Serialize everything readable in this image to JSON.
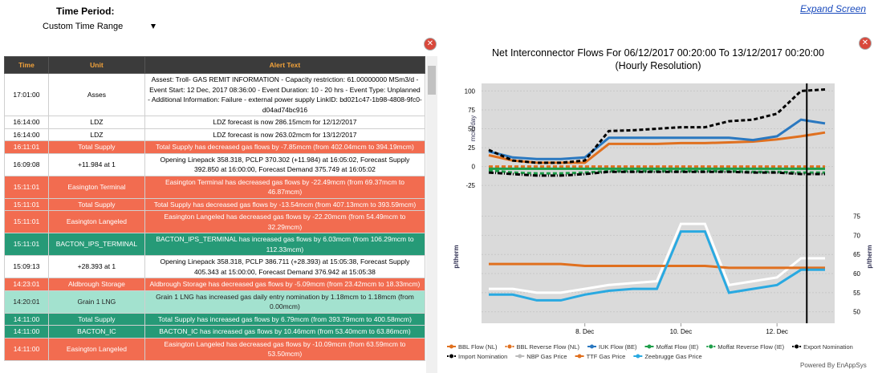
{
  "header": {
    "time_period_label": "Time Period:",
    "time_range": "Custom Time Range",
    "expand": "Expand Screen"
  },
  "table": {
    "columns": [
      "Time",
      "Unit",
      "Alert Text"
    ],
    "rows": [
      [
        "17:01:00",
        "Asses",
        "Assest: Troll- GAS REMIT INFORMATION - Capacity restriction: 61.00000000 MSm3/d - Event Start: 12 Dec, 2017 08:36:00 - Event Duration: 10 - 20 hrs - Event Type: Unplanned - Additional Information: Failure - external power supply LinkID: bd021c47-1b98-4808-9fc0-d04ad74bc916"
      ],
      [
        "16:14:00",
        "LDZ",
        "LDZ forecast is now 286.15mcm for 12/12/2017"
      ],
      [
        "16:14:00",
        "LDZ",
        "LDZ forecast is now 263.02mcm for 13/12/2017"
      ],
      [
        "16:11:01",
        "Total Supply",
        "Total Supply has decreased gas flows by -7.85mcm (from 402.04mcm to 394.19mcm)"
      ],
      [
        "16:09:08",
        "+11.984 at 1",
        "Opening Linepack 358.318, PCLP 370.302 (+11.984) at 16:05:02, Forecast Supply 392.850 at 16:00:00, Forecast Demand 375.749 at 16:05:02"
      ],
      [
        "15:11:01",
        "Easington Terminal",
        "Easington Terminal has decreased gas flows by -22.49mcm (from 69.37mcm to 46.87mcm)"
      ],
      [
        "15:11:01",
        "Total Supply",
        "Total Supply has decreased gas flows by -13.54mcm (from 407.13mcm to 393.59mcm)"
      ],
      [
        "15:11:01",
        "Easington Langeled",
        "Easington Langeled has decreased gas flows by -22.20mcm (from 54.49mcm to 32.29mcm)"
      ],
      [
        "15:11:01",
        "BACTON_IPS_TERMINAL",
        "BACTON_IPS_TERMINAL has increased gas flows by 6.03mcm (from 106.29mcm to 112.33mcm)"
      ],
      [
        "15:09:13",
        "+28.393 at 1",
        "Opening Linepack 358.318, PCLP 386.711 (+28.393) at 15:05:38, Forecast Supply 405.343 at 15:00:00, Forecast Demand 376.942 at 15:05:38"
      ],
      [
        "14:23:01",
        "Aldbrough Storage",
        "Aldbrough Storage has decreased gas flows by -5.09mcm (from 23.42mcm to 18.33mcm)"
      ],
      [
        "14:20:01",
        "Grain 1 LNG",
        "Grain 1 LNG has increased gas daily entry nomination by 1.18mcm to 1.18mcm (from 0.00mcm)"
      ],
      [
        "14:11:00",
        "Total Supply",
        "Total Supply has increased gas flows by 6.79mcm (from 393.79mcm to 400.58mcm)"
      ],
      [
        "14:11:00",
        "BACTON_IC",
        "BACTON_IC has increased gas flows by 10.46mcm (from 53.40mcm to 63.86mcm)"
      ],
      [
        "14:11:00",
        "Easington Langeled",
        "Easington Langeled has decreased gas flows by -10.09mcm (from 63.59mcm to 53.50mcm)"
      ]
    ],
    "row_styles": [
      "white",
      "white",
      "white",
      "red",
      "white",
      "red",
      "red",
      "red",
      "teal",
      "white",
      "red",
      "lteal",
      "teal",
      "teal",
      "red"
    ]
  },
  "chart_data": {
    "type": "line",
    "title": "Net Interconnector Flows For 06/12/2017 00:20:00 To 13/12/2017 00:20:00",
    "subtitle": "(Hourly Resolution)",
    "y_label": "mcm/day",
    "y2_label": "p/therm",
    "x": [
      6,
      6.5,
      7,
      7.5,
      8,
      8.5,
      9,
      9.5,
      10,
      10.5,
      11,
      11.5,
      12,
      12.5,
      13
    ],
    "xlim": [
      5.85,
      13.2
    ],
    "xticks": [
      {
        "value": 8,
        "label": "8. Dec"
      },
      {
        "value": 10,
        "label": "10. Dec"
      },
      {
        "value": 12,
        "label": "12. Dec"
      }
    ],
    "ylim": [
      -45,
      110
    ],
    "yticks": [
      -25,
      0,
      25,
      50,
      75,
      100
    ],
    "y2lim": [
      47,
      77
    ],
    "y2ticks": [
      50,
      55,
      60,
      65,
      70,
      75
    ],
    "vline_x": 12.62,
    "grid": true,
    "series": [
      {
        "name": "BBL Flow (NL)",
        "color": "#e0701f",
        "values": [
          15,
          8,
          5,
          5,
          5,
          30,
          30,
          30,
          31,
          31,
          32,
          33,
          36,
          40,
          45
        ]
      },
      {
        "name": "BBL Reverse Flow (NL)",
        "color": "#e0701f",
        "dash": "dashed",
        "values": [
          0,
          0,
          0,
          0,
          0,
          0,
          0,
          0,
          0,
          0,
          0,
          0,
          0,
          0,
          0
        ]
      },
      {
        "name": "IUK Flow (BE)",
        "color": "#2a78c0",
        "values": [
          20,
          12,
          10,
          10,
          12,
          38,
          38,
          38,
          38,
          38,
          38,
          35,
          40,
          62,
          57
        ]
      },
      {
        "name": "Moffat Flow (IE)",
        "color": "#1f9e4a",
        "values": [
          -3,
          -3,
          -3,
          -3,
          -3,
          -3,
          -3,
          -3,
          -3,
          -3,
          -3,
          -3,
          -3,
          -3,
          -3
        ]
      },
      {
        "name": "Moffat Reverse Flow (IE)",
        "color": "#1f9e4a",
        "dash": "dashed",
        "values": [
          -5,
          -8,
          -9,
          -9,
          -8,
          -6,
          -6,
          -6,
          -6,
          -6,
          -6,
          -7,
          -7,
          -8,
          -8
        ]
      },
      {
        "name": "Export Nomination",
        "color": "#000000",
        "dash": "dashed",
        "values": [
          22,
          8,
          5,
          5,
          8,
          47,
          48,
          50,
          52,
          52,
          60,
          62,
          70,
          100,
          102
        ]
      },
      {
        "name": "Import Nomination",
        "color": "#000000",
        "dash": "dashdot",
        "values": [
          -8,
          -10,
          -12,
          -12,
          -10,
          -7,
          -7,
          -7,
          -7,
          -7,
          -7,
          -8,
          -8,
          -10,
          -10
        ]
      },
      {
        "name": "NBP Gas Price",
        "color": "#ffffff",
        "axis": "y2",
        "values": [
          56,
          56,
          55,
          55,
          56,
          57,
          57.5,
          58,
          73,
          73,
          57,
          58,
          59,
          64,
          64
        ]
      },
      {
        "name": "TTF Gas Price",
        "color": "#e0701f",
        "axis": "y2",
        "values": [
          62.5,
          62.5,
          62.5,
          62.5,
          62,
          62,
          62,
          62,
          62,
          62,
          61.5,
          61.5,
          61.5,
          61.5,
          61.5
        ]
      },
      {
        "name": "Zeebrugge Gas Price",
        "color": "#29a9e1",
        "axis": "y2",
        "values": [
          54.5,
          54.5,
          53,
          53,
          54.5,
          55.5,
          56,
          56,
          71,
          71,
          55,
          56,
          57,
          61,
          61
        ]
      }
    ]
  },
  "footer": "Powered By EnAppSys"
}
